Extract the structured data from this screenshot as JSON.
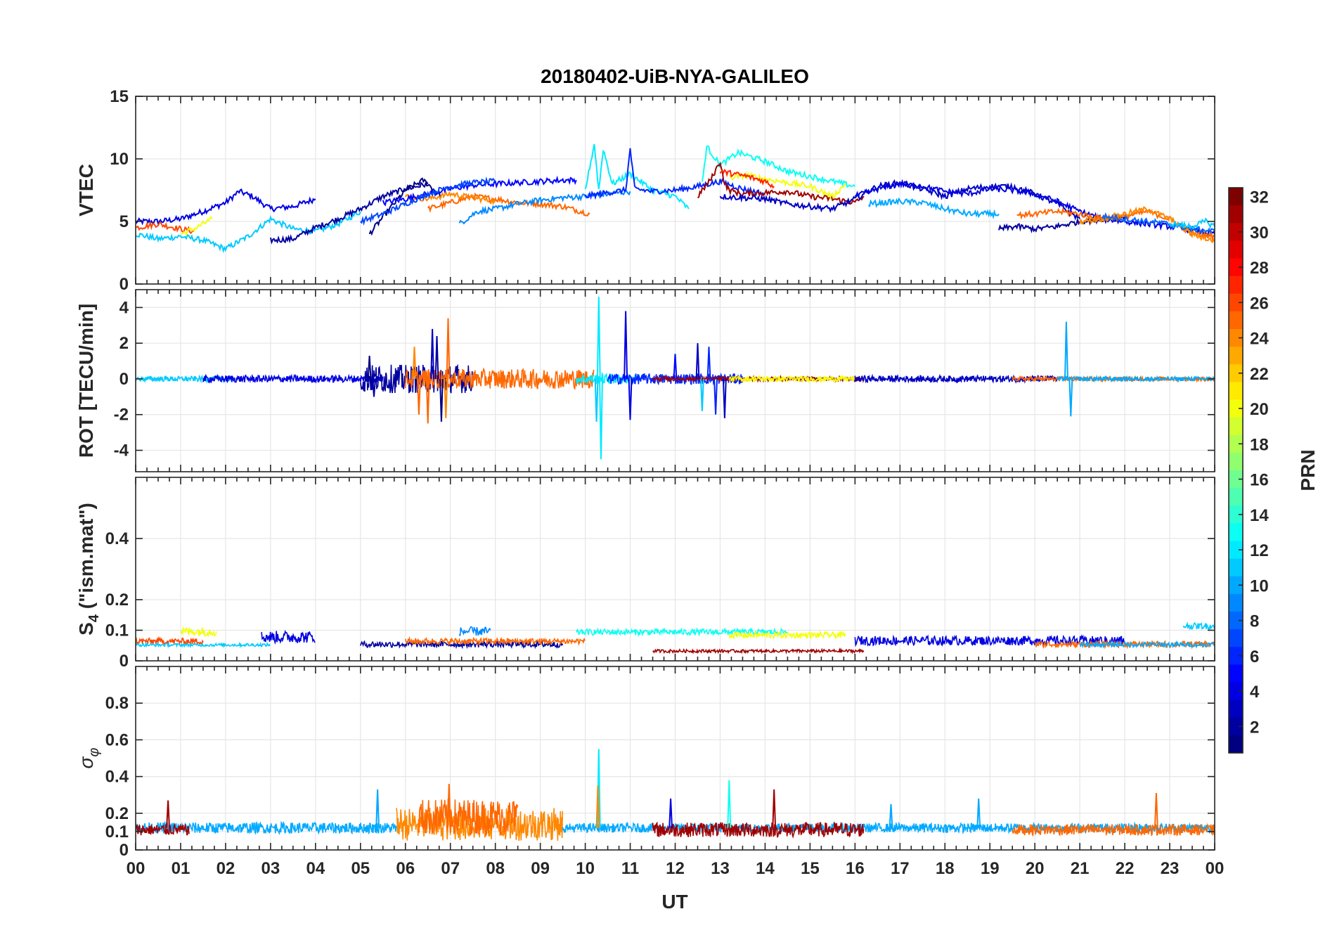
{
  "chart_data": {
    "type": "line",
    "title": "20180402-UiB-NYA-GALILEO",
    "xlabel": "UT",
    "x_range": [
      0,
      24
    ],
    "x_tick_labels": [
      "00",
      "01",
      "02",
      "03",
      "04",
      "05",
      "06",
      "07",
      "08",
      "09",
      "10",
      "11",
      "12",
      "13",
      "14",
      "15",
      "16",
      "17",
      "18",
      "19",
      "20",
      "21",
      "22",
      "23",
      "00"
    ],
    "panels": [
      {
        "id": "vtec",
        "ylabel": "VTEC",
        "ylim": [
          0,
          15
        ],
        "yticks": [
          0,
          5,
          10,
          15
        ],
        "ytick_labels": [
          "0",
          "5",
          "10",
          "15"
        ],
        "series": [
          {
            "prn": 4,
            "t": [
              0,
              0.5,
              1,
              1.5,
              2,
              2.3,
              2.6,
              3,
              3.5,
              4.0
            ],
            "v": [
              5,
              5,
              5.2,
              5.8,
              6.5,
              7.4,
              7.0,
              6.0,
              6.2,
              6.8
            ]
          },
          {
            "prn": 11,
            "t": [
              0,
              0.5,
              1,
              1.5,
              2,
              2.5,
              3,
              3.5,
              4,
              4.5,
              5
            ],
            "v": [
              4.0,
              3.6,
              3.8,
              3.5,
              2.8,
              3.8,
              5.2,
              4.4,
              4.2,
              4.8,
              5.8
            ]
          },
          {
            "prn": 26,
            "t": [
              0,
              0.5,
              1,
              1.3
            ],
            "v": [
              4.5,
              4.8,
              4.4,
              4.2
            ]
          },
          {
            "prn": 20,
            "t": [
              1,
              1.3,
              1.7
            ],
            "v": [
              4.0,
              4.4,
              5.2
            ]
          },
          {
            "prn": 2,
            "t": [
              3,
              3.5,
              4,
              4.5,
              5,
              5.5,
              6,
              6.5
            ],
            "v": [
              3.5,
              3.6,
              4.5,
              5.2,
              6.0,
              7.0,
              7.6,
              8.0
            ]
          },
          {
            "prn": 1,
            "t": [
              5.2,
              5.6,
              6,
              6.4,
              6.8
            ],
            "v": [
              4.0,
              5.8,
              7.5,
              8.3,
              7.0
            ]
          },
          {
            "prn": 25,
            "t": [
              6.5,
              7,
              7.5,
              8,
              8.5,
              9,
              9.5,
              10.1
            ],
            "v": [
              6.0,
              6.5,
              7.0,
              6.8,
              6.5,
              6.4,
              6.2,
              5.6
            ]
          },
          {
            "prn": 24,
            "t": [
              6.0,
              6.5,
              7,
              7.5,
              8
            ],
            "v": [
              7.0,
              6.8,
              7.2,
              6.9,
              6.6
            ]
          },
          {
            "prn": 9,
            "t": [
              7.2,
              7.6,
              8,
              8.5,
              9,
              9.5,
              10,
              10.5,
              11
            ],
            "v": [
              4.8,
              5.8,
              6.0,
              6.4,
              6.7,
              6.9,
              7.0,
              7.2,
              7.4
            ]
          },
          {
            "prn": 5,
            "t": [
              5.5,
              6,
              6.5,
              7,
              7.5,
              8,
              8.5,
              9,
              9.5,
              9.8
            ],
            "v": [
              6.5,
              6.8,
              7.2,
              7.6,
              7.9,
              8.0,
              8.1,
              8.2,
              8.3,
              8.3
            ]
          },
          {
            "prn": 7,
            "t": [
              5.0,
              5.5,
              6,
              6.5,
              7,
              7.5,
              8
            ],
            "v": [
              5.0,
              5.6,
              6.4,
              7.2,
              7.8,
              8.1,
              8.2
            ]
          },
          {
            "prn": 12,
            "t": [
              10,
              10.2,
              10.3,
              10.4,
              10.6,
              11,
              11.5,
              12,
              12.3
            ],
            "v": [
              7.5,
              11.2,
              7.5,
              10.8,
              8.0,
              8.8,
              7.5,
              7.0,
              6.0
            ]
          },
          {
            "prn": 6,
            "t": [
              10.0,
              10.5,
              10.9,
              11.0,
              11.1,
              11.5,
              12,
              12.5,
              13,
              13.5,
              14
            ],
            "v": [
              7.0,
              7.3,
              7.5,
              10.8,
              7.6,
              7.4,
              7.5,
              7.8,
              8.2,
              7.6,
              7.2
            ]
          },
          {
            "prn": 13,
            "t": [
              12.6,
              12.7,
              13,
              13.4,
              14,
              14.5,
              15,
              15.5,
              16
            ],
            "v": [
              8.0,
              11.0,
              9.5,
              10.5,
              9.8,
              9.0,
              8.6,
              8.2,
              7.8
            ]
          },
          {
            "prn": 31,
            "t": [
              12.5,
              12.8,
              13,
              13.1,
              13.2,
              13.5,
              14,
              14.5,
              15,
              15.5,
              16,
              16.2
            ],
            "v": [
              7.0,
              8.4,
              9.8,
              8.0,
              7.5,
              7.2,
              7.3,
              7.4,
              7.0,
              6.8,
              6.5,
              7.0
            ]
          },
          {
            "prn": 20,
            "t": [
              13.2,
              13.6,
              14,
              14.5,
              15,
              15.5,
              15.8
            ],
            "v": [
              8.5,
              8.7,
              8.4,
              8.1,
              7.8,
              7.0,
              8.0
            ]
          },
          {
            "prn": 27,
            "t": [
              13.0,
              13.3,
              13.6,
              14,
              14.2
            ],
            "v": [
              9.0,
              8.8,
              8.6,
              8.2,
              7.8
            ]
          },
          {
            "prn": 3,
            "t": [
              13.0,
              14,
              14.5,
              15,
              15.5,
              16,
              16.5,
              17,
              17.5,
              18,
              18.5,
              19,
              19.5,
              20,
              20.5,
              21
            ],
            "v": [
              7.0,
              6.8,
              6.4,
              6.2,
              6.0,
              6.8,
              7.8,
              8.1,
              7.6,
              7.0,
              7.6,
              7.8,
              7.8,
              7.2,
              6.4,
              5.2
            ]
          },
          {
            "prn": 10,
            "t": [
              16.3,
              17,
              17.5,
              18,
              18.5,
              19.2
            ],
            "v": [
              6.4,
              6.6,
              6.5,
              6.0,
              5.6,
              5.6
            ]
          },
          {
            "prn": 4,
            "t": [
              16.0,
              16.5,
              17,
              17.5,
              18,
              18.5,
              19,
              19.5,
              20,
              20.5,
              21,
              21.5,
              22,
              22.5,
              23,
              24
            ],
            "v": [
              7.0,
              7.6,
              8.0,
              7.8,
              7.4,
              7.2,
              7.6,
              7.5,
              7.2,
              6.6,
              5.8,
              5.2,
              5.0,
              4.8,
              4.6,
              4.0
            ]
          },
          {
            "prn": 2,
            "t": [
              19.2,
              19.6,
              20,
              20.5,
              21,
              21.5,
              22
            ],
            "v": [
              4.4,
              4.6,
              4.4,
              4.6,
              5.0,
              5.2,
              5.4
            ]
          },
          {
            "prn": 25,
            "t": [
              19.6,
              20,
              20.5,
              21,
              21.5,
              22,
              22.5,
              23,
              23.5,
              24
            ],
            "v": [
              5.5,
              5.6,
              5.8,
              5.6,
              5.2,
              5.4,
              5.8,
              5.2,
              4.0,
              3.8
            ]
          },
          {
            "prn": 24,
            "t": [
              21.0,
              21.5,
              22,
              22.5,
              23,
              23.5,
              24
            ],
            "v": [
              5.0,
              5.2,
              5.6,
              6.0,
              5.2,
              4.0,
              3.4
            ]
          },
          {
            "prn": 8,
            "t": [
              21.5,
              22,
              22.5,
              23,
              23.5,
              24
            ],
            "v": [
              5.4,
              5.2,
              5.0,
              4.8,
              4.4,
              4.2
            ]
          },
          {
            "prn": 11,
            "t": [
              23.0,
              23.5,
              23.8,
              24
            ],
            "v": [
              4.8,
              4.6,
              5.0,
              4.6
            ]
          }
        ]
      },
      {
        "id": "rot",
        "ylabel": "ROT [TECU/min]",
        "ylim": [
          -5.2,
          5.0
        ],
        "yticks": [
          -4,
          -2,
          0,
          2,
          4
        ],
        "ytick_labels": [
          "-4",
          "-2",
          "0",
          "2",
          "4"
        ],
        "spikes": [
          {
            "prn": 1,
            "t": 5.2,
            "v": 1.3
          },
          {
            "prn": 2,
            "t": 5.3,
            "v": -1.0
          },
          {
            "prn": 24,
            "t": 6.2,
            "v": 1.8
          },
          {
            "prn": 25,
            "t": 6.3,
            "v": -2.0
          },
          {
            "prn": 3,
            "t": 6.6,
            "v": 2.8
          },
          {
            "prn": 25,
            "t": 6.5,
            "v": -2.5
          },
          {
            "prn": 25,
            "t": 6.95,
            "v": 3.4
          },
          {
            "prn": 1,
            "t": 6.8,
            "v": -2.4
          },
          {
            "prn": 2,
            "t": 6.7,
            "v": 2.4
          },
          {
            "prn": 24,
            "t": 6.9,
            "v": -2.2
          },
          {
            "prn": 12,
            "t": 10.3,
            "v": 4.6
          },
          {
            "prn": 12,
            "t": 10.35,
            "v": -4.5
          },
          {
            "prn": 11,
            "t": 10.25,
            "v": -2.4
          },
          {
            "prn": 4,
            "t": 10.9,
            "v": 3.8
          },
          {
            "prn": 4,
            "t": 11.0,
            "v": -2.3
          },
          {
            "prn": 5,
            "t": 12.0,
            "v": 1.4
          },
          {
            "prn": 3,
            "t": 12.5,
            "v": 2.0
          },
          {
            "prn": 11,
            "t": 12.6,
            "v": -1.8
          },
          {
            "prn": 6,
            "t": 12.75,
            "v": 1.8
          },
          {
            "prn": 6,
            "t": 12.9,
            "v": -2.0
          },
          {
            "prn": 3,
            "t": 13.1,
            "v": -2.2
          },
          {
            "prn": 10,
            "t": 20.7,
            "v": 3.2
          },
          {
            "prn": 10,
            "t": 20.8,
            "v": -2.1
          }
        ]
      },
      {
        "id": "s4",
        "ylabel": "S4 (\"ism.mat\")",
        "ylim": [
          0,
          0.6
        ],
        "yticks": [
          0,
          0.1,
          0.2,
          0.4
        ],
        "ytick_labels": [
          "0",
          "0.1",
          "0.2",
          "0.4"
        ]
      },
      {
        "id": "sigma",
        "ylabel": "σφ",
        "ylim": [
          0,
          1
        ],
        "yticks": [
          0,
          0.1,
          0.2,
          0.4,
          0.6,
          0.8
        ],
        "ytick_labels": [
          "0",
          "0.1",
          "0.2",
          "0.4",
          "0.6",
          "0.8"
        ],
        "spikes": [
          {
            "prn": 31,
            "t": 0.72,
            "v": 0.27
          },
          {
            "prn": 10,
            "t": 5.38,
            "v": 0.33
          },
          {
            "prn": 25,
            "t": 6.97,
            "v": 0.36
          },
          {
            "prn": 12,
            "t": 10.3,
            "v": 0.55
          },
          {
            "prn": 24,
            "t": 10.28,
            "v": 0.35
          },
          {
            "prn": 4,
            "t": 11.9,
            "v": 0.28
          },
          {
            "prn": 13,
            "t": 13.2,
            "v": 0.38
          },
          {
            "prn": 31,
            "t": 14.2,
            "v": 0.33
          },
          {
            "prn": 10,
            "t": 16.8,
            "v": 0.25
          },
          {
            "prn": 10,
            "t": 18.75,
            "v": 0.28
          },
          {
            "prn": 25,
            "t": 22.7,
            "v": 0.31
          }
        ]
      }
    ],
    "colorbar": {
      "label": "PRN",
      "range": [
        1,
        32
      ],
      "ticks": [
        2,
        4,
        6,
        8,
        10,
        12,
        14,
        16,
        18,
        20,
        22,
        24,
        26,
        28,
        30,
        32
      ],
      "tick_labels": [
        "2",
        "4",
        "6",
        "8",
        "10",
        "12",
        "14",
        "16",
        "18",
        "20",
        "22",
        "24",
        "26",
        "28",
        "30",
        "32"
      ],
      "colormap": "jet",
      "colors": [
        "#00008f",
        "#0000ff",
        "#0080ff",
        "#00ffff",
        "#80ff80",
        "#ffff00",
        "#ff8000",
        "#ff0000",
        "#800000"
      ]
    }
  }
}
